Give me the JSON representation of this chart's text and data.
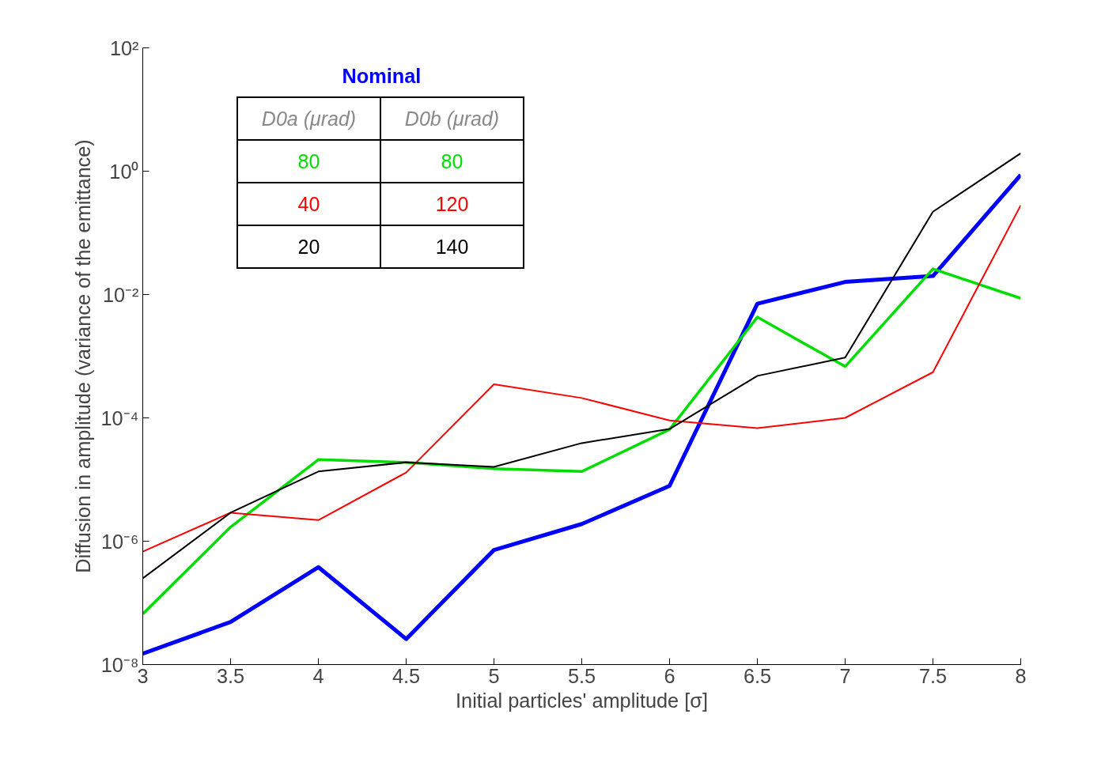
{
  "chart_data": {
    "type": "line",
    "xlabel": "Initial particles' amplitude [σ]",
    "ylabel": "Diffusion in amplitude (variance of the emittance)",
    "x": [
      3,
      3.5,
      4,
      4.5,
      5,
      5.5,
      6,
      6.5,
      7,
      7.5,
      8
    ],
    "series": [
      {
        "name": "Nominal",
        "color": "#0000ff",
        "values": [
          1.5e-08,
          4.9e-08,
          3.8e-07,
          2.6e-08,
          7.2e-07,
          1.9e-06,
          7.9e-06,
          0.0071,
          0.016,
          0.02,
          0.87
        ]
      },
      {
        "color": "#00dd00",
        "values": [
          6.6e-08,
          1.7e-06,
          2.1e-05,
          1.9e-05,
          1.5e-05,
          1.35e-05,
          6.5e-05,
          0.0043,
          0.00068,
          0.026,
          0.0087
        ]
      },
      {
        "color": "#ff0000",
        "values": [
          6.8e-07,
          2.9e-06,
          2.2e-06,
          1.3e-05,
          0.00035,
          0.00021,
          9.1e-05,
          6.8e-05,
          0.0001,
          0.00055,
          0.28
        ]
      },
      {
        "color": "#000000",
        "values": [
          2.5e-07,
          2.9e-06,
          1.35e-05,
          1.9e-05,
          1.6e-05,
          3.9e-05,
          6.6e-05,
          0.00048,
          0.00095,
          0.22,
          1.95
        ]
      }
    ],
    "annotations": [
      "D0a (μrad)",
      "D0b (μrad)",
      "80",
      "80",
      "40",
      "120",
      "20",
      "140"
    ],
    "log": "y",
    "xlim": [
      3,
      8
    ],
    "xticks": [
      3,
      3.5,
      4,
      4.5,
      5,
      5.5,
      6,
      6.5,
      7,
      7.5,
      8
    ],
    "ylim": [
      1e-08,
      100
    ],
    "yticks": [
      {
        "value": 1e-08,
        "label": "10⁻⁸"
      },
      {
        "value": 1e-06,
        "label": "10⁻⁶"
      },
      {
        "value": 0.0001,
        "label": "10⁻⁴"
      },
      {
        "value": 0.01,
        "label": "10⁻²"
      },
      {
        "value": 1,
        "label": "10⁰"
      },
      {
        "value": 100,
        "label": "10²"
      }
    ],
    "grid": false,
    "legend": false,
    "marker": "none",
    "line_style": "solid"
  }
}
